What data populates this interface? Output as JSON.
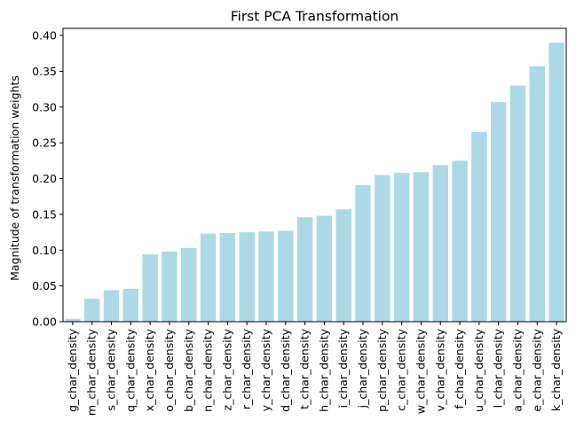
{
  "chart_data": {
    "type": "bar",
    "title": "First PCA Transformation",
    "xlabel": "",
    "ylabel": "Magnitude of transformation weights",
    "ylim": [
      0,
      0.41
    ],
    "yticks": [
      "0.00",
      "0.05",
      "0.10",
      "0.15",
      "0.20",
      "0.25",
      "0.30",
      "0.35",
      "0.40"
    ],
    "grid": false,
    "bar_color": "#add8e6",
    "categories": [
      "g_char_density",
      "m_char_density",
      "s_char_density",
      "q_char_density",
      "x_char_density",
      "o_char_density",
      "b_char_density",
      "n_char_density",
      "z_char_density",
      "r_char_density",
      "y_char_density",
      "d_char_density",
      "t_char_density",
      "h_char_density",
      "i_char_density",
      "j_char_density",
      "p_char_density",
      "c_char_density",
      "w_char_density",
      "v_char_density",
      "f_char_density",
      "u_char_density",
      "l_char_density",
      "a_char_density",
      "e_char_density",
      "k_char_density"
    ],
    "values": [
      0.004,
      0.032,
      0.044,
      0.046,
      0.094,
      0.098,
      0.103,
      0.123,
      0.124,
      0.125,
      0.126,
      0.127,
      0.146,
      0.148,
      0.157,
      0.191,
      0.205,
      0.208,
      0.209,
      0.219,
      0.225,
      0.265,
      0.307,
      0.33,
      0.357,
      0.39
    ]
  }
}
